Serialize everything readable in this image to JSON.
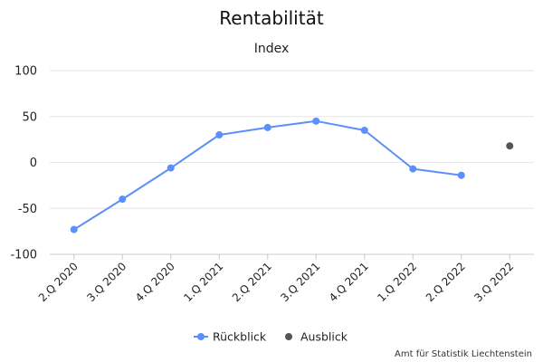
{
  "chart_data": {
    "type": "line",
    "title": "Rentabilität",
    "subtitle": "Index",
    "xlabel": "",
    "ylabel": "",
    "categories": [
      "2.Q 2020",
      "3.Q 2020",
      "4.Q 2020",
      "1.Q 2021",
      "2.Q 2021",
      "3.Q 2021",
      "4.Q 2021",
      "1.Q 2022",
      "2.Q 2022",
      "3.Q 2022"
    ],
    "ylim": [
      -100,
      100
    ],
    "yticks": [
      100,
      50,
      0,
      -50,
      -100
    ],
    "grid": true,
    "legend_position": "bottom-center",
    "series": [
      {
        "name": "Rückblick",
        "color": "#5b8ff9",
        "line": true,
        "values": [
          -73,
          -40,
          -6,
          30,
          38,
          45,
          35,
          -7,
          -14,
          null
        ]
      },
      {
        "name": "Ausblick",
        "color": "#555555",
        "line": false,
        "values": [
          null,
          null,
          null,
          null,
          null,
          null,
          null,
          null,
          null,
          18
        ]
      }
    ],
    "credit": "Amt für Statistik Liechtenstein"
  }
}
